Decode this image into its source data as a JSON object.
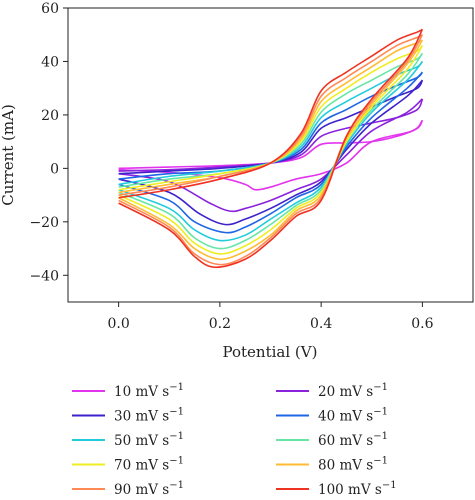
{
  "chart_data": {
    "type": "line",
    "title": "",
    "xlabel": "Potential (V)",
    "ylabel": "Current (mA)",
    "xlim": [
      -0.1,
      0.7
    ],
    "ylim": [
      -50,
      60
    ],
    "xticks": [
      0.0,
      0.2,
      0.4,
      0.6
    ],
    "yticks": [
      -40,
      -20,
      0,
      20,
      40,
      60
    ],
    "xtick_labels": [
      "0.0",
      "0.2",
      "0.4",
      "0.6"
    ],
    "ytick_labels": [
      "−40",
      "−20",
      "0",
      "20",
      "40",
      "60"
    ],
    "grid": false,
    "legend_position": "below",
    "legend_columns": 2,
    "series": [
      {
        "name": "10 mV s",
        "label_unit_sup": "−1",
        "scan_rate": 10,
        "color": "#e233ee",
        "anodic": [
          [
            0.0,
            0
          ],
          [
            0.1,
            0.5
          ],
          [
            0.2,
            1
          ],
          [
            0.3,
            2
          ],
          [
            0.36,
            4
          ],
          [
            0.4,
            9
          ],
          [
            0.45,
            9.5
          ],
          [
            0.5,
            10
          ],
          [
            0.55,
            12
          ],
          [
            0.59,
            15
          ],
          [
            0.6,
            18
          ]
        ],
        "cathodic": [
          [
            0.6,
            18
          ],
          [
            0.58,
            14
          ],
          [
            0.5,
            10
          ],
          [
            0.45,
            2
          ],
          [
            0.4,
            -2
          ],
          [
            0.35,
            -4
          ],
          [
            0.3,
            -7
          ],
          [
            0.27,
            -8
          ],
          [
            0.25,
            -6
          ],
          [
            0.2,
            -3.5
          ],
          [
            0.1,
            -1.5
          ],
          [
            0.0,
            -0.5
          ]
        ]
      },
      {
        "name": "20 mV s",
        "label_unit_sup": "−1",
        "scan_rate": 20,
        "color": "#8a22dd",
        "anodic": [
          [
            0.0,
            -1
          ],
          [
            0.1,
            -0.5
          ],
          [
            0.2,
            0.5
          ],
          [
            0.3,
            2
          ],
          [
            0.36,
            5
          ],
          [
            0.4,
            12
          ],
          [
            0.45,
            15
          ],
          [
            0.5,
            17
          ],
          [
            0.55,
            19
          ],
          [
            0.59,
            22
          ],
          [
            0.6,
            26
          ]
        ],
        "cathodic": [
          [
            0.6,
            26
          ],
          [
            0.57,
            21
          ],
          [
            0.5,
            14
          ],
          [
            0.45,
            5
          ],
          [
            0.4,
            -4
          ],
          [
            0.35,
            -8
          ],
          [
            0.3,
            -12
          ],
          [
            0.25,
            -15
          ],
          [
            0.22,
            -16
          ],
          [
            0.18,
            -13
          ],
          [
            0.1,
            -5
          ],
          [
            0.0,
            -2
          ]
        ]
      },
      {
        "name": "30 mV s",
        "label_unit_sup": "−1",
        "scan_rate": 30,
        "color": "#3d22cc",
        "anodic": [
          [
            0.0,
            -2
          ],
          [
            0.1,
            -1
          ],
          [
            0.2,
            0
          ],
          [
            0.3,
            2
          ],
          [
            0.36,
            6
          ],
          [
            0.4,
            15
          ],
          [
            0.45,
            19
          ],
          [
            0.5,
            23
          ],
          [
            0.55,
            27
          ],
          [
            0.59,
            30
          ],
          [
            0.6,
            33
          ]
        ],
        "cathodic": [
          [
            0.6,
            33
          ],
          [
            0.57,
            27
          ],
          [
            0.5,
            17
          ],
          [
            0.45,
            7
          ],
          [
            0.4,
            -5
          ],
          [
            0.35,
            -10
          ],
          [
            0.3,
            -15
          ],
          [
            0.25,
            -19
          ],
          [
            0.21,
            -21
          ],
          [
            0.16,
            -17
          ],
          [
            0.1,
            -9
          ],
          [
            0.0,
            -4
          ]
        ]
      },
      {
        "name": "40 mV s",
        "label_unit_sup": "−1",
        "scan_rate": 40,
        "color": "#1f66e6",
        "anodic": [
          [
            0.0,
            -4
          ],
          [
            0.1,
            -2
          ],
          [
            0.2,
            -1
          ],
          [
            0.3,
            2
          ],
          [
            0.36,
            7
          ],
          [
            0.4,
            17
          ],
          [
            0.45,
            22
          ],
          [
            0.5,
            27
          ],
          [
            0.55,
            31
          ],
          [
            0.59,
            34
          ],
          [
            0.6,
            36
          ]
        ],
        "cathodic": [
          [
            0.6,
            36
          ],
          [
            0.57,
            30
          ],
          [
            0.5,
            19
          ],
          [
            0.45,
            8
          ],
          [
            0.4,
            -6
          ],
          [
            0.35,
            -11
          ],
          [
            0.3,
            -17
          ],
          [
            0.25,
            -22
          ],
          [
            0.21,
            -24
          ],
          [
            0.15,
            -20
          ],
          [
            0.1,
            -12
          ],
          [
            0.0,
            -6
          ]
        ]
      },
      {
        "name": "50 mV s",
        "label_unit_sup": "−1",
        "scan_rate": 50,
        "color": "#22ccdd",
        "anodic": [
          [
            0.0,
            -6
          ],
          [
            0.1,
            -3
          ],
          [
            0.2,
            -1
          ],
          [
            0.3,
            2
          ],
          [
            0.36,
            8
          ],
          [
            0.4,
            19
          ],
          [
            0.45,
            25
          ],
          [
            0.5,
            30
          ],
          [
            0.55,
            35
          ],
          [
            0.59,
            38
          ],
          [
            0.6,
            40
          ]
        ],
        "cathodic": [
          [
            0.6,
            40
          ],
          [
            0.57,
            33
          ],
          [
            0.5,
            21
          ],
          [
            0.45,
            9
          ],
          [
            0.4,
            -7
          ],
          [
            0.35,
            -13
          ],
          [
            0.3,
            -19
          ],
          [
            0.25,
            -25
          ],
          [
            0.2,
            -27
          ],
          [
            0.15,
            -23
          ],
          [
            0.1,
            -15
          ],
          [
            0.0,
            -8
          ]
        ]
      },
      {
        "name": "60 mV s",
        "label_unit_sup": "−1",
        "scan_rate": 60,
        "color": "#66e6a6",
        "anodic": [
          [
            0.0,
            -7
          ],
          [
            0.1,
            -4
          ],
          [
            0.2,
            -2
          ],
          [
            0.3,
            2
          ],
          [
            0.36,
            9
          ],
          [
            0.4,
            21
          ],
          [
            0.45,
            28
          ],
          [
            0.5,
            33
          ],
          [
            0.55,
            38
          ],
          [
            0.59,
            41
          ],
          [
            0.6,
            43
          ]
        ],
        "cathodic": [
          [
            0.6,
            43
          ],
          [
            0.57,
            35
          ],
          [
            0.5,
            22
          ],
          [
            0.45,
            10
          ],
          [
            0.4,
            -8
          ],
          [
            0.35,
            -14
          ],
          [
            0.3,
            -21
          ],
          [
            0.25,
            -27
          ],
          [
            0.2,
            -30
          ],
          [
            0.15,
            -26
          ],
          [
            0.1,
            -17
          ],
          [
            0.0,
            -9
          ]
        ]
      },
      {
        "name": "70 mV s",
        "label_unit_sup": "−1",
        "scan_rate": 70,
        "color": "#eeee22",
        "anodic": [
          [
            0.0,
            -8
          ],
          [
            0.1,
            -5
          ],
          [
            0.2,
            -2
          ],
          [
            0.3,
            2
          ],
          [
            0.36,
            10
          ],
          [
            0.4,
            23
          ],
          [
            0.45,
            30
          ],
          [
            0.5,
            36
          ],
          [
            0.55,
            41
          ],
          [
            0.59,
            44
          ],
          [
            0.6,
            46
          ]
        ],
        "cathodic": [
          [
            0.6,
            46
          ],
          [
            0.57,
            37
          ],
          [
            0.5,
            23
          ],
          [
            0.45,
            10
          ],
          [
            0.4,
            -9
          ],
          [
            0.35,
            -15
          ],
          [
            0.3,
            -23
          ],
          [
            0.25,
            -29
          ],
          [
            0.2,
            -32
          ],
          [
            0.15,
            -28
          ],
          [
            0.1,
            -19
          ],
          [
            0.0,
            -10
          ]
        ]
      },
      {
        "name": "80 mV s",
        "label_unit_sup": "−1",
        "scan_rate": 80,
        "color": "#ffbb33",
        "anodic": [
          [
            0.0,
            -9
          ],
          [
            0.1,
            -6
          ],
          [
            0.2,
            -3
          ],
          [
            0.3,
            2
          ],
          [
            0.36,
            11
          ],
          [
            0.4,
            25
          ],
          [
            0.45,
            32
          ],
          [
            0.5,
            38
          ],
          [
            0.55,
            44
          ],
          [
            0.59,
            47
          ],
          [
            0.6,
            48
          ]
        ],
        "cathodic": [
          [
            0.6,
            48
          ],
          [
            0.57,
            39
          ],
          [
            0.5,
            24
          ],
          [
            0.45,
            11
          ],
          [
            0.4,
            -10
          ],
          [
            0.35,
            -16
          ],
          [
            0.3,
            -25
          ],
          [
            0.25,
            -31
          ],
          [
            0.2,
            -34
          ],
          [
            0.15,
            -30
          ],
          [
            0.1,
            -21
          ],
          [
            0.0,
            -11
          ]
        ]
      },
      {
        "name": "90 mV s",
        "label_unit_sup": "−1",
        "scan_rate": 90,
        "color": "#ff8855",
        "anodic": [
          [
            0.0,
            -10
          ],
          [
            0.1,
            -7
          ],
          [
            0.2,
            -3
          ],
          [
            0.3,
            2
          ],
          [
            0.36,
            12
          ],
          [
            0.4,
            27
          ],
          [
            0.45,
            34
          ],
          [
            0.5,
            40
          ],
          [
            0.55,
            46
          ],
          [
            0.59,
            49
          ],
          [
            0.6,
            50
          ]
        ],
        "cathodic": [
          [
            0.6,
            50
          ],
          [
            0.57,
            40
          ],
          [
            0.5,
            25
          ],
          [
            0.45,
            12
          ],
          [
            0.4,
            -11
          ],
          [
            0.35,
            -17
          ],
          [
            0.3,
            -26
          ],
          [
            0.25,
            -33
          ],
          [
            0.2,
            -36
          ],
          [
            0.15,
            -32
          ],
          [
            0.1,
            -22
          ],
          [
            0.0,
            -12
          ]
        ]
      },
      {
        "name": "100 mV s",
        "label_unit_sup": "−1",
        "scan_rate": 100,
        "color": "#ee3322",
        "anodic": [
          [
            0.0,
            -11
          ],
          [
            0.1,
            -8
          ],
          [
            0.2,
            -4
          ],
          [
            0.3,
            2
          ],
          [
            0.36,
            13
          ],
          [
            0.4,
            29
          ],
          [
            0.45,
            36
          ],
          [
            0.5,
            42
          ],
          [
            0.55,
            48
          ],
          [
            0.59,
            51
          ],
          [
            0.6,
            52
          ]
        ],
        "cathodic": [
          [
            0.6,
            52
          ],
          [
            0.57,
            41
          ],
          [
            0.5,
            26
          ],
          [
            0.45,
            12
          ],
          [
            0.4,
            -12
          ],
          [
            0.35,
            -18
          ],
          [
            0.3,
            -27
          ],
          [
            0.25,
            -34
          ],
          [
            0.19,
            -37
          ],
          [
            0.15,
            -33
          ],
          [
            0.1,
            -23
          ],
          [
            0.0,
            -13
          ]
        ]
      }
    ]
  }
}
